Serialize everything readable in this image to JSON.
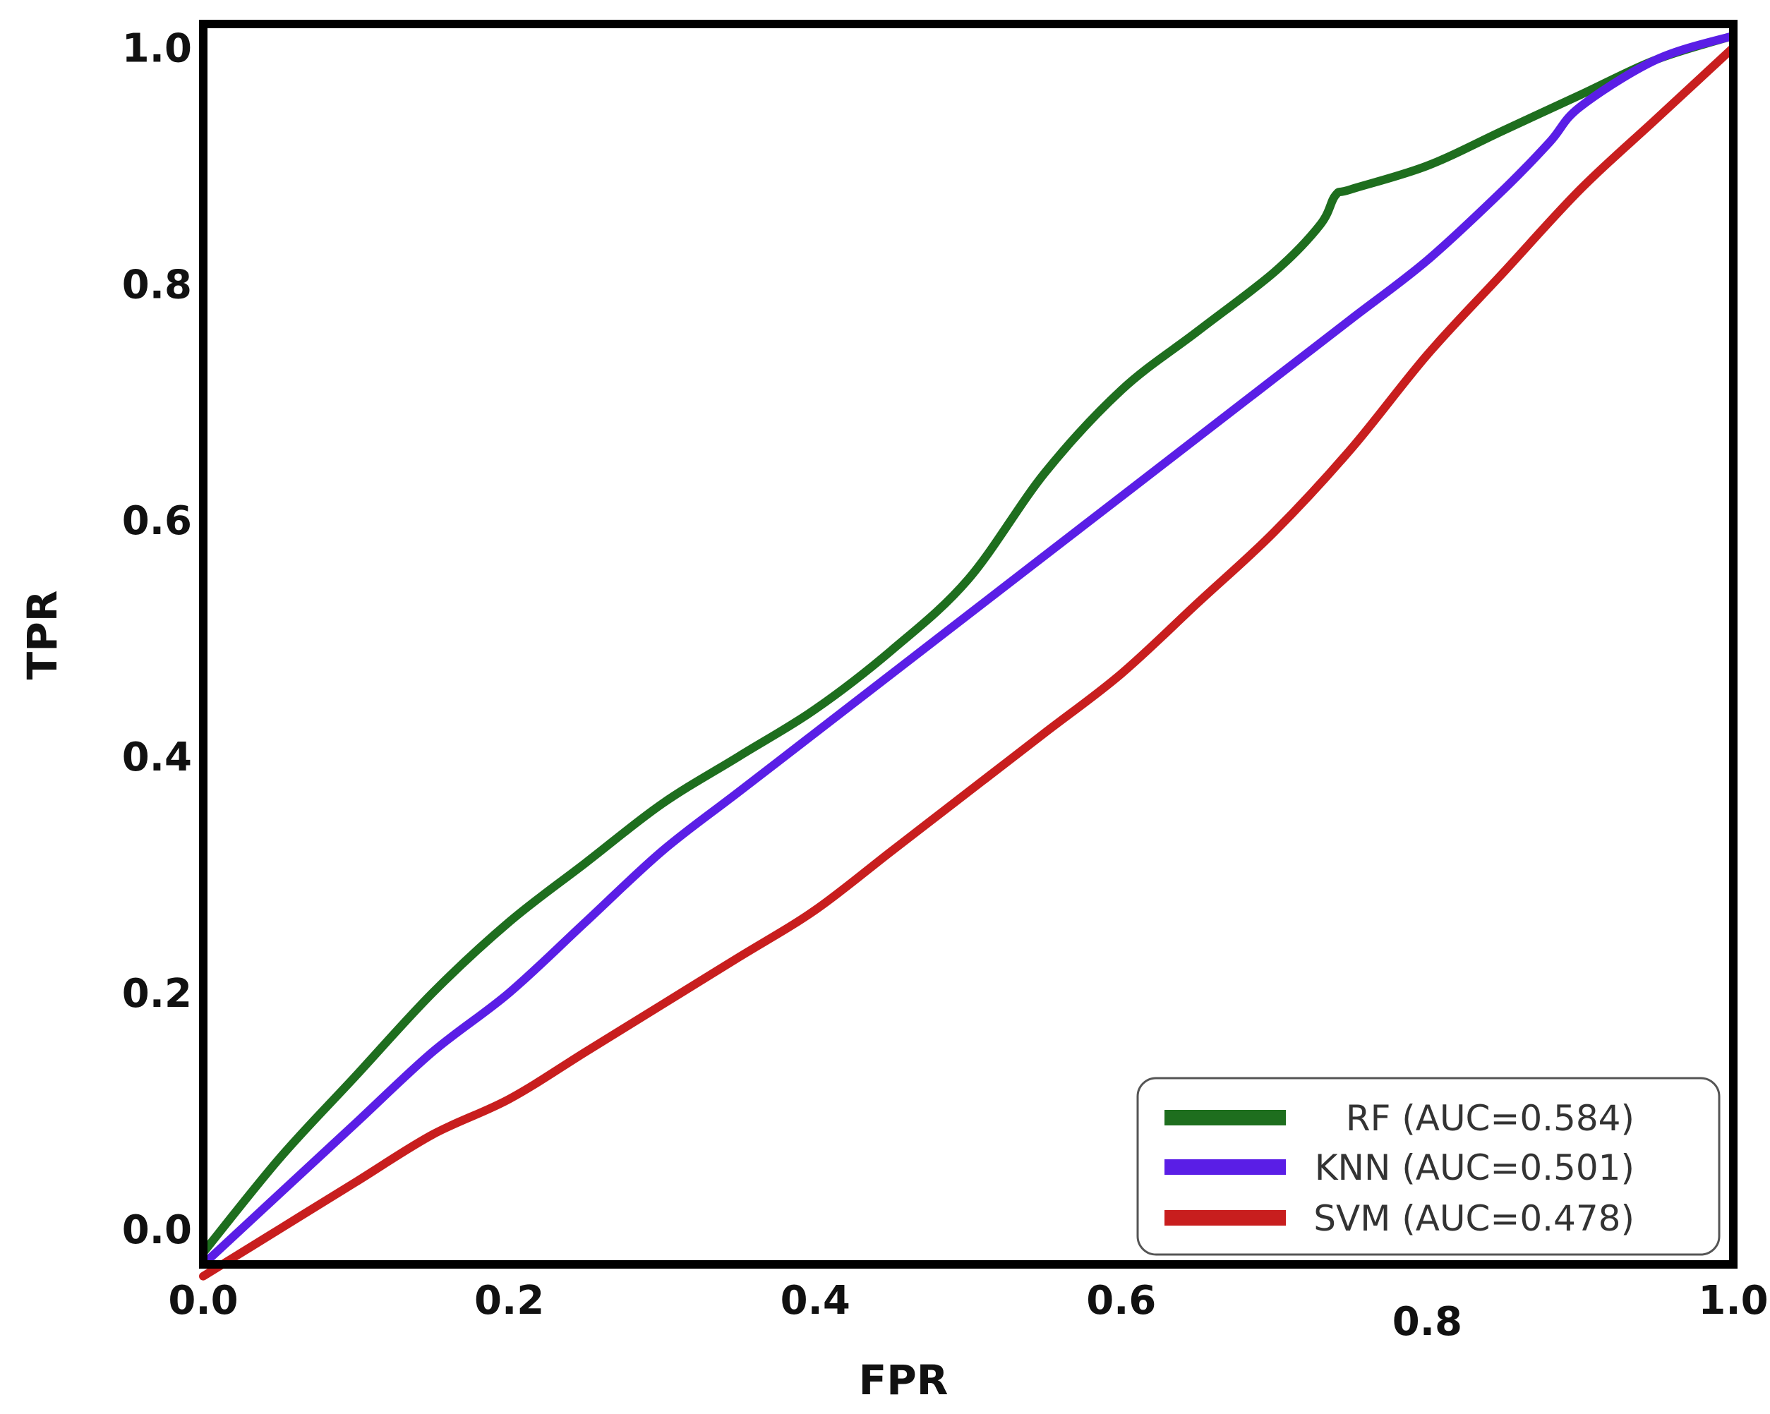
{
  "chart_data": {
    "type": "line",
    "title": "",
    "xlabel": "FPR",
    "ylabel": "TPR",
    "xlim": [
      0.0,
      1.0
    ],
    "ylim": [
      -0.03,
      1.02
    ],
    "x_ticks": [
      "0.0",
      "0.2",
      "0.4",
      "0.6",
      "0.8",
      "1.0"
    ],
    "y_ticks": [
      "0.0",
      "0.2",
      "0.4",
      "0.6",
      "0.8",
      "1.0"
    ],
    "grid": false,
    "legend_position": "lower-right",
    "series": [
      {
        "name": "RF (AUC=0.584)",
        "color": "#1e6e1e",
        "x": [
          0.0,
          0.05,
          0.1,
          0.15,
          0.2,
          0.25,
          0.3,
          0.35,
          0.4,
          0.45,
          0.5,
          0.55,
          0.6,
          0.65,
          0.7,
          0.73,
          0.74,
          0.75,
          0.8,
          0.85,
          0.9,
          0.95,
          1.0
        ],
        "y": [
          -0.02,
          0.06,
          0.13,
          0.2,
          0.26,
          0.31,
          0.36,
          0.4,
          0.44,
          0.49,
          0.55,
          0.64,
          0.71,
          0.76,
          0.81,
          0.85,
          0.875,
          0.88,
          0.9,
          0.93,
          0.96,
          0.99,
          1.01
        ]
      },
      {
        "name": "KNN (AUC=0.501)",
        "color": "#5a1ee6",
        "x": [
          0.0,
          0.05,
          0.1,
          0.15,
          0.2,
          0.25,
          0.3,
          0.35,
          0.4,
          0.45,
          0.5,
          0.55,
          0.6,
          0.65,
          0.7,
          0.75,
          0.8,
          0.85,
          0.88,
          0.9,
          0.95,
          1.0
        ],
        "y": [
          -0.03,
          0.03,
          0.09,
          0.15,
          0.2,
          0.26,
          0.32,
          0.37,
          0.42,
          0.47,
          0.52,
          0.57,
          0.62,
          0.67,
          0.72,
          0.77,
          0.82,
          0.88,
          0.92,
          0.95,
          0.99,
          1.01
        ]
      },
      {
        "name": "SVM (AUC=0.478)",
        "color": "#c81e1e",
        "x": [
          0.0,
          0.05,
          0.1,
          0.15,
          0.2,
          0.25,
          0.3,
          0.35,
          0.4,
          0.45,
          0.5,
          0.55,
          0.6,
          0.65,
          0.7,
          0.75,
          0.8,
          0.85,
          0.9,
          0.95,
          1.0
        ],
        "y": [
          -0.04,
          0.0,
          0.04,
          0.08,
          0.11,
          0.15,
          0.19,
          0.23,
          0.27,
          0.32,
          0.37,
          0.42,
          0.47,
          0.53,
          0.59,
          0.66,
          0.74,
          0.81,
          0.88,
          0.94,
          1.0
        ]
      }
    ]
  }
}
